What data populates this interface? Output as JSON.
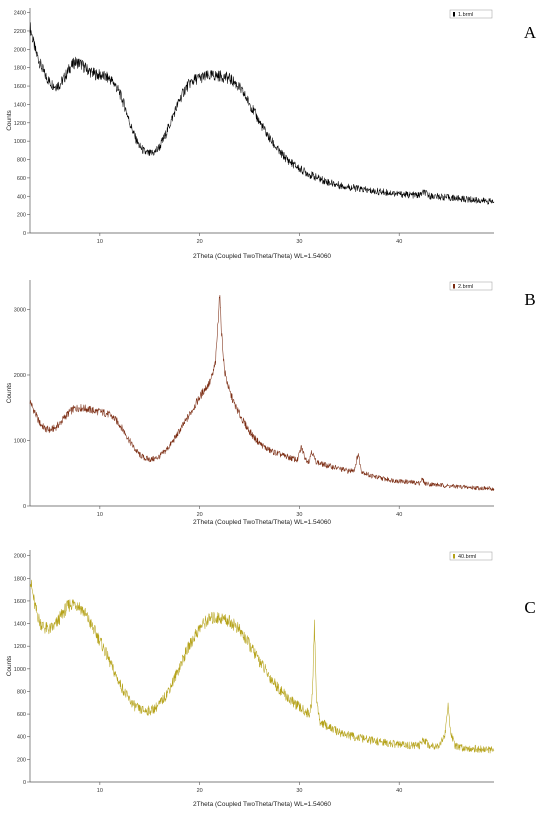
{
  "chart_data": [
    {
      "type": "line",
      "panel_label": "A",
      "xlabel": "2Theta (Coupled TwoTheta/Theta) WL=1.54060",
      "ylabel": "Counts",
      "xlim": [
        3,
        49.5
      ],
      "ylim": [
        0,
        2450
      ],
      "xticks": [
        10,
        20,
        30,
        40
      ],
      "yticks": [
        0,
        200,
        400,
        600,
        800,
        1000,
        1200,
        1400,
        1600,
        1800,
        2000,
        2200,
        2400
      ],
      "grid": false,
      "legend_position": "top-right",
      "series": [
        {
          "name": "1.brml",
          "color": "#000000",
          "x": [
            3,
            3.5,
            4,
            4.5,
            5,
            5.5,
            6,
            6.5,
            7,
            7.5,
            8,
            8.5,
            9,
            9.5,
            10,
            10.5,
            11,
            11.5,
            12,
            12.5,
            13,
            13.5,
            14,
            14.5,
            15,
            15.5,
            16,
            16.5,
            17,
            17.5,
            18,
            18.5,
            19,
            19.5,
            20,
            20.5,
            21,
            21.5,
            22,
            22.5,
            23,
            23.5,
            24,
            24.5,
            25,
            25.5,
            26,
            26.5,
            27,
            28,
            29,
            30,
            31,
            32,
            33,
            34,
            35,
            36,
            37,
            38,
            39,
            40,
            41,
            42,
            42.5,
            43,
            44,
            45,
            46,
            47,
            48,
            49,
            49.5
          ],
          "y": [
            2250,
            2000,
            1850,
            1720,
            1640,
            1600,
            1620,
            1700,
            1800,
            1860,
            1850,
            1800,
            1760,
            1730,
            1720,
            1700,
            1680,
            1620,
            1520,
            1380,
            1200,
            1050,
            940,
            880,
            860,
            880,
            940,
            1050,
            1180,
            1320,
            1450,
            1560,
            1630,
            1670,
            1690,
            1700,
            1710,
            1715,
            1710,
            1700,
            1680,
            1640,
            1580,
            1500,
            1410,
            1310,
            1210,
            1120,
            1030,
            880,
            780,
            700,
            640,
            590,
            550,
            520,
            500,
            480,
            460,
            450,
            440,
            425,
            415,
            410,
            445,
            405,
            395,
            385,
            375,
            365,
            355,
            345,
            340
          ]
        }
      ]
    },
    {
      "type": "line",
      "panel_label": "B",
      "xlabel": "2Theta (Coupled TwoTheta/Theta) WL=1.54060",
      "ylabel": "Counts",
      "xlim": [
        3,
        49.5
      ],
      "ylim": [
        0,
        3450
      ],
      "xticks": [
        10,
        20,
        30,
        40
      ],
      "yticks": [
        0,
        1000,
        2000,
        3000
      ],
      "grid": false,
      "legend_position": "top-right",
      "series": [
        {
          "name": "2.brml",
          "color": "#7a2a10",
          "x": [
            3,
            3.5,
            4,
            4.5,
            5,
            5.5,
            6,
            6.5,
            7,
            7.5,
            8,
            8.5,
            9,
            9.5,
            10,
            10.5,
            11,
            11.5,
            12,
            12.5,
            13,
            13.5,
            14,
            14.5,
            15,
            15.5,
            16,
            16.5,
            17,
            17.5,
            18,
            18.5,
            19,
            19.5,
            20,
            20.5,
            21,
            21.3,
            21.6,
            21.8,
            22,
            22.2,
            22.5,
            23,
            23.5,
            24,
            24.5,
            25,
            25.5,
            26,
            26.5,
            27,
            28,
            29,
            29.8,
            30.2,
            30.6,
            31,
            31.2,
            31.6,
            32,
            33,
            34,
            35,
            35.5,
            35.9,
            36.2,
            36.6,
            37,
            38,
            39,
            40,
            41,
            42,
            42.3,
            42.6,
            43,
            44,
            45,
            46,
            47,
            48,
            49,
            49.5
          ],
          "y": [
            1600,
            1420,
            1260,
            1180,
            1160,
            1190,
            1260,
            1360,
            1440,
            1490,
            1500,
            1490,
            1470,
            1450,
            1440,
            1420,
            1390,
            1330,
            1240,
            1120,
            990,
            870,
            780,
            730,
            710,
            720,
            760,
            830,
            920,
            1030,
            1150,
            1270,
            1400,
            1530,
            1660,
            1780,
            1880,
            2000,
            2200,
            2700,
            3250,
            2650,
            2050,
            1750,
            1550,
            1400,
            1260,
            1140,
            1040,
            960,
            900,
            850,
            790,
            740,
            700,
            900,
            720,
            680,
            850,
            690,
            650,
            610,
            570,
            530,
            560,
            800,
            540,
            500,
            470,
            430,
            400,
            380,
            365,
            350,
            410,
            345,
            335,
            320,
            305,
            295,
            285,
            275,
            265,
            260
          ]
        }
      ]
    },
    {
      "type": "line",
      "panel_label": "C",
      "xlabel": "2Theta (Coupled TwoTheta/Theta) WL=1.54060",
      "ylabel": "Counts",
      "xlim": [
        3,
        49.5
      ],
      "ylim": [
        0,
        2050
      ],
      "xticks": [
        10,
        20,
        30,
        40
      ],
      "yticks": [
        0,
        200,
        400,
        600,
        800,
        1000,
        1200,
        1400,
        1600,
        1800,
        2000
      ],
      "grid": false,
      "legend_position": "top-right",
      "series": [
        {
          "name": "40.brml",
          "color": "#b5a219",
          "x": [
            3,
            3.5,
            4,
            4.5,
            5,
            5.5,
            6,
            6.5,
            7,
            7.5,
            8,
            8.5,
            9,
            9.5,
            10,
            10.5,
            11,
            11.5,
            12,
            12.5,
            13,
            13.5,
            14,
            14.5,
            15,
            15.5,
            16,
            16.5,
            17,
            17.5,
            18,
            18.5,
            19,
            19.5,
            20,
            20.5,
            21,
            21.5,
            22,
            22.5,
            23,
            23.5,
            24,
            24.5,
            25,
            25.5,
            26,
            26.5,
            27,
            28,
            29,
            30,
            31,
            31.3,
            31.5,
            31.7,
            32,
            33,
            34,
            35,
            36,
            37,
            38,
            39,
            40,
            41,
            42,
            42.5,
            43,
            44,
            44.6,
            44.9,
            45.2,
            45.6,
            46,
            47,
            48,
            49,
            49.5
          ],
          "y": [
            1800,
            1550,
            1410,
            1360,
            1350,
            1380,
            1450,
            1520,
            1570,
            1580,
            1550,
            1490,
            1410,
            1330,
            1250,
            1160,
            1060,
            960,
            870,
            790,
            720,
            670,
            640,
            630,
            630,
            650,
            690,
            750,
            830,
            920,
            1020,
            1120,
            1210,
            1290,
            1360,
            1410,
            1440,
            1450,
            1450,
            1440,
            1420,
            1390,
            1340,
            1280,
            1210,
            1140,
            1070,
            1000,
            930,
            820,
            730,
            660,
            600,
            750,
            1400,
            760,
            540,
            480,
            440,
            410,
            390,
            370,
            355,
            340,
            330,
            325,
            320,
            380,
            320,
            325,
            420,
            680,
            420,
            315,
            305,
            300,
            290,
            285,
            280
          ]
        }
      ]
    }
  ]
}
